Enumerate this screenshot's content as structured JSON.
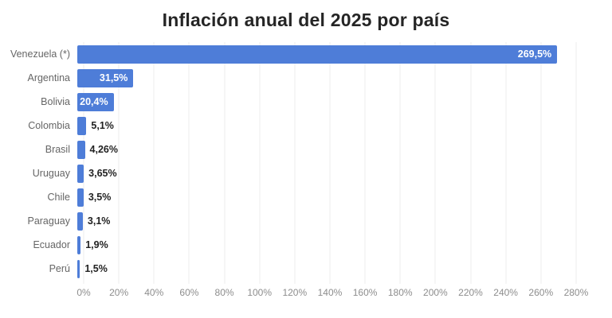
{
  "chart_data": {
    "type": "bar",
    "orientation": "horizontal",
    "title": "Inflación anual del 2025 por país",
    "categories": [
      "Venezuela (*)",
      "Argentina",
      "Bolivia",
      "Colombia",
      "Brasil",
      "Uruguay",
      "Chile",
      "Paraguay",
      "Ecuador",
      "Perú"
    ],
    "values": [
      269.5,
      31.5,
      20.4,
      5.1,
      4.26,
      3.65,
      3.5,
      3.1,
      1.9,
      1.5
    ],
    "value_labels": [
      "269,5%",
      "31,5%",
      "20,4%",
      "5,1%",
      "4,26%",
      "3,65%",
      "3,5%",
      "3,1%",
      "1,9%",
      "1,5%"
    ],
    "label_inside": [
      true,
      true,
      true,
      false,
      false,
      false,
      false,
      false,
      false,
      false
    ],
    "xlabel": "",
    "ylabel": "",
    "xlim": [
      0,
      290
    ],
    "x_ticks": [
      "0%",
      "20%",
      "40%",
      "60%",
      "80%",
      "100%",
      "120%",
      "140%",
      "160%",
      "180%",
      "200%",
      "220%",
      "240%",
      "260%",
      "280%"
    ],
    "x_tick_values": [
      0,
      20,
      40,
      60,
      80,
      100,
      120,
      140,
      160,
      180,
      200,
      220,
      240,
      260,
      280
    ],
    "grid": true,
    "legend": false,
    "colors": {
      "bar": "#4e7dd8",
      "inside_label": "#ffffff",
      "outside_label": "#222222",
      "category_label": "#666666",
      "tick_label": "#8d8d8d",
      "gridline": "#ececec",
      "title": "#252525",
      "background": "#ffffff"
    }
  }
}
